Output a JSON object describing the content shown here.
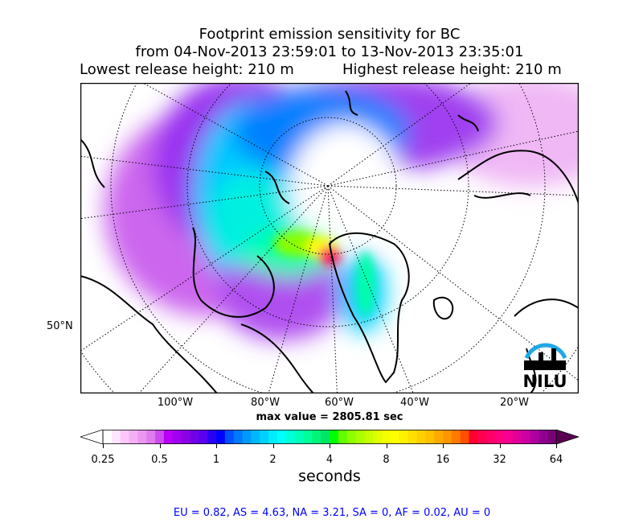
{
  "title": {
    "line1": "Footprint emission sensitivity for BC",
    "line2": "from 04-Nov-2013 23:59:01 to 13-Nov-2013 23:35:01",
    "lowest": "Lowest release height: 210 m",
    "highest": "Highest release height: 210 m"
  },
  "map": {
    "lon_labels": [
      "100°W",
      "80°W",
      "60°W",
      "40°W",
      "20°W"
    ],
    "lat_label": "50°N",
    "logo": "NILU",
    "logo_color": "#1ea8e6"
  },
  "max_value": "max value = 2805.81 sec",
  "colorbar": {
    "ticks": [
      "0.25",
      "0.5",
      "1",
      "2",
      "4",
      "8",
      "16",
      "32",
      "64"
    ],
    "units": "seconds",
    "under_color": "#ffffff",
    "over_color": "#5a0050",
    "colors": [
      "#ffffff",
      "#ffe6ff",
      "#fcc8fc",
      "#f5b0f5",
      "#eb96f0",
      "#e07bf0",
      "#cc4cf0",
      "#b800f5",
      "#a000f0",
      "#8c00e6",
      "#7000e6",
      "#5a00f0",
      "#2a00f5",
      "#0000ff",
      "#0050ff",
      "#0078ff",
      "#0098ff",
      "#00b8ff",
      "#00d2ff",
      "#00ecff",
      "#00ffff",
      "#00ffd8",
      "#00ffb8",
      "#00ff9a",
      "#00f578",
      "#00e664",
      "#00ff00",
      "#64ff00",
      "#8cff00",
      "#aaff00",
      "#c6ff00",
      "#e0ff00",
      "#f5ff00",
      "#ffff00",
      "#fff000",
      "#ffe000",
      "#ffd000",
      "#ffc000",
      "#ffaa00",
      "#ff9600",
      "#ff7a00",
      "#ff5000",
      "#ff0030",
      "#ff0050",
      "#ff0068",
      "#ff0080",
      "#f50090",
      "#e00098",
      "#cc00a0",
      "#b000a0",
      "#900090",
      "#7a0078"
    ]
  },
  "footer": "EU = 0.82,  AS = 4.63,  NA = 3.21,  SA = 0,  AF = 0.02,  AU = 0"
}
